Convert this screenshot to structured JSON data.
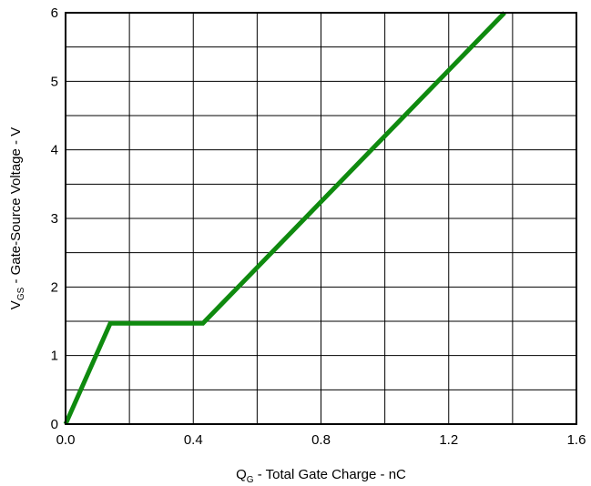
{
  "chart_data": {
    "type": "line",
    "title": "",
    "xlabel": {
      "symbol": "Q",
      "subscript": "G",
      "text": " - Total Gate Charge - nC"
    },
    "ylabel": {
      "symbol": "V",
      "subscript": "GS",
      "text": " - Gate-Source Voltage - V"
    },
    "xlim": [
      0,
      1.6
    ],
    "ylim": [
      0,
      6
    ],
    "x_ticks": [
      {
        "value": 0.0,
        "label": "0.0"
      },
      {
        "value": 0.4,
        "label": "0.4"
      },
      {
        "value": 0.8,
        "label": "0.8"
      },
      {
        "value": 1.2,
        "label": "1.2"
      },
      {
        "value": 1.6,
        "label": "1.6"
      }
    ],
    "y_ticks": [
      {
        "value": 0,
        "label": "0"
      },
      {
        "value": 1,
        "label": "1"
      },
      {
        "value": 2,
        "label": "2"
      },
      {
        "value": 3,
        "label": "3"
      },
      {
        "value": 4,
        "label": "4"
      },
      {
        "value": 5,
        "label": "5"
      },
      {
        "value": 6,
        "label": "6"
      }
    ],
    "grid": true,
    "x_grid_step": 0.2,
    "y_grid_step": 0.5,
    "series": [
      {
        "color": "#0f8a0f",
        "x": [
          0.0,
          0.14,
          0.43,
          1.375
        ],
        "y": [
          0.0,
          1.47,
          1.47,
          6.0
        ]
      }
    ]
  }
}
